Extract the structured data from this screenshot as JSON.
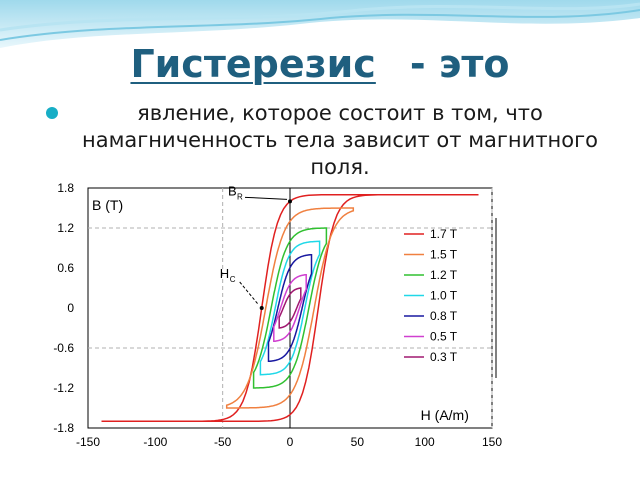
{
  "slide": {
    "title_term": "Гистерезис",
    "title_rest": "- это",
    "bullet_text": "явление, которое состоит в том, что намагниченность тела зависит от магнитного поля.",
    "accent_color": "#17aec6",
    "title_color": "#1f5f7f"
  },
  "chart_data": {
    "type": "line",
    "title": "",
    "xlabel": "H (A/m)",
    "ylabel": "B (T)",
    "xlim": [
      -150,
      150
    ],
    "ylim": [
      -1.8,
      1.8
    ],
    "x_ticks": [
      "-150",
      "-100",
      "-50",
      "0",
      "50",
      "100",
      "150"
    ],
    "y_ticks": [
      "1.8",
      "1.2",
      "0.6",
      "0",
      "-0.6",
      "-1.2",
      "-1.8"
    ],
    "dashed_reference_lines": {
      "x": [
        -50,
        150
      ],
      "y": [
        1.2,
        -0.6
      ]
    },
    "legend_position": "right",
    "annotations": [
      {
        "text": "B",
        "subscript": "R",
        "x": 0,
        "y": 1.6
      },
      {
        "text": "H",
        "subscript": "C",
        "x": -21,
        "y": 0
      }
    ],
    "series": [
      {
        "name": "1.7 T",
        "color": "#e02020",
        "Bmax": 1.7,
        "Hmax": 140,
        "Hc": 21,
        "Br": 1.6
      },
      {
        "name": "1.5 T",
        "color": "#f08040",
        "Bmax": 1.5,
        "Hmax": 47,
        "Hc": 18,
        "Br": 1.3
      },
      {
        "name": "1.2 T",
        "color": "#30c030",
        "Bmax": 1.2,
        "Hmax": 27,
        "Hc": 14,
        "Br": 1.0
      },
      {
        "name": "1.0 T",
        "color": "#20d8e8",
        "Bmax": 1.0,
        "Hmax": 22,
        "Hc": 11,
        "Br": 0.8
      },
      {
        "name": "0.8 T",
        "color": "#1818a0",
        "Bmax": 0.8,
        "Hmax": 16,
        "Hc": 9,
        "Br": 0.6
      },
      {
        "name": "0.5 T",
        "color": "#d040d0",
        "Bmax": 0.5,
        "Hmax": 12,
        "Hc": 7,
        "Br": 0.35
      },
      {
        "name": "0.3 T",
        "color": "#a01870",
        "Bmax": 0.3,
        "Hmax": 8,
        "Hc": 5,
        "Br": 0.2
      }
    ]
  }
}
